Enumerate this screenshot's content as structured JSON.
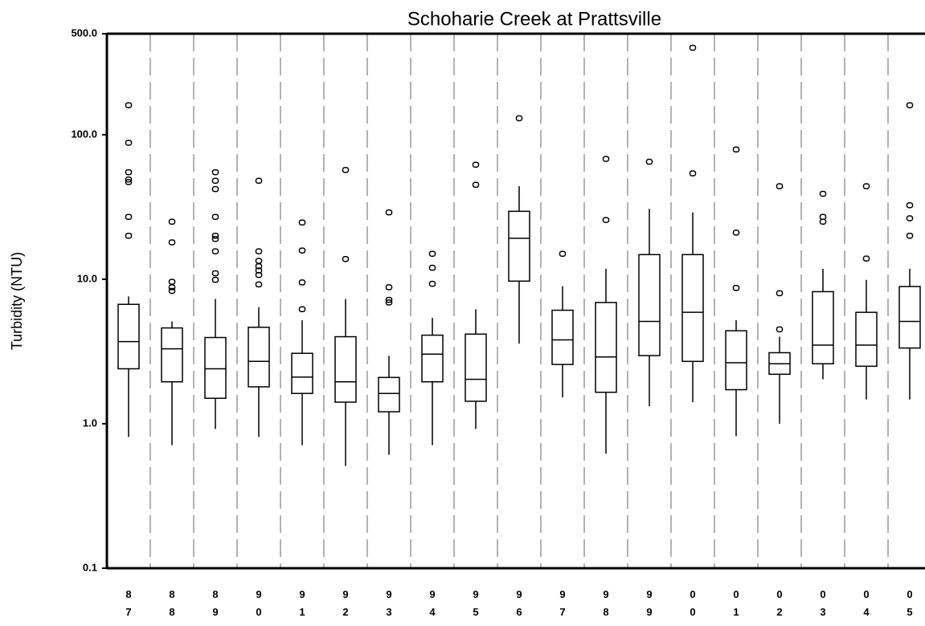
{
  "chart_data": {
    "type": "box",
    "title": "Schoharie Creek at Prattsville",
    "y_label": "Turbidity (NTU)",
    "categories": [
      "87",
      "88",
      "89",
      "90",
      "91",
      "92",
      "93",
      "94",
      "95",
      "96",
      "97",
      "98",
      "99",
      "00",
      "01",
      "02",
      "03",
      "04",
      "05"
    ],
    "boxes": [
      {
        "whisker_low": 0.81,
        "q1": 2.4,
        "median": 3.7,
        "q3": 6.7,
        "whisker_high": 7.6,
        "outliers": [
          160,
          88,
          55,
          49,
          47,
          27,
          20
        ]
      },
      {
        "whisker_low": 0.71,
        "q1": 1.95,
        "median": 3.3,
        "q3": 4.6,
        "whisker_high": 5.1,
        "outliers": [
          25,
          18,
          9.6,
          8.8,
          8.3
        ]
      },
      {
        "whisker_low": 0.92,
        "q1": 1.5,
        "median": 2.4,
        "q3": 3.95,
        "whisker_high": 7.3,
        "outliers": [
          55,
          48,
          42,
          27,
          20,
          19,
          15.6,
          11,
          9.9
        ]
      },
      {
        "whisker_low": 0.81,
        "q1": 1.8,
        "median": 2.7,
        "q3": 4.65,
        "whisker_high": 6.4,
        "outliers": [
          48,
          15.6,
          13.4,
          12.3,
          11.5,
          10.7,
          9.2
        ]
      },
      {
        "whisker_low": 0.71,
        "q1": 1.62,
        "median": 2.1,
        "q3": 3.07,
        "whisker_high": 5.2,
        "outliers": [
          24.7,
          15.8,
          9.5,
          6.2
        ]
      },
      {
        "whisker_low": 0.51,
        "q1": 1.41,
        "median": 1.95,
        "q3": 4.0,
        "whisker_high": 7.3,
        "outliers": [
          57,
          13.8
        ]
      },
      {
        "whisker_low": 0.61,
        "q1": 1.21,
        "median": 1.62,
        "q3": 2.09,
        "whisker_high": 2.95,
        "outliers": [
          29,
          8.8,
          7.2,
          6.9
        ]
      },
      {
        "whisker_low": 0.71,
        "q1": 1.95,
        "median": 3.03,
        "q3": 4.1,
        "whisker_high": 5.4,
        "outliers": [
          15,
          12,
          9.3
        ]
      },
      {
        "whisker_low": 0.92,
        "q1": 1.43,
        "median": 2.03,
        "q3": 4.17,
        "whisker_high": 6.2,
        "outliers": [
          62,
          45
        ]
      },
      {
        "whisker_low": 3.58,
        "q1": 9.7,
        "median": 19.2,
        "q3": 29.5,
        "whisker_high": 44,
        "outliers": [
          130
        ]
      },
      {
        "whisker_low": 1.52,
        "q1": 2.57,
        "median": 3.8,
        "q3": 6.1,
        "whisker_high": 8.95,
        "outliers": [
          15
        ]
      },
      {
        "whisker_low": 0.62,
        "q1": 1.65,
        "median": 2.9,
        "q3": 6.9,
        "whisker_high": 11.8,
        "outliers": [
          68,
          25.7
        ]
      },
      {
        "whisker_low": 1.32,
        "q1": 2.96,
        "median": 5.1,
        "q3": 14.8,
        "whisker_high": 30.7,
        "outliers": [
          65
        ]
      },
      {
        "whisker_low": 1.41,
        "q1": 2.7,
        "median": 5.9,
        "q3": 14.8,
        "whisker_high": 29,
        "outliers": [
          400,
          54
        ]
      },
      {
        "whisker_low": 0.82,
        "q1": 1.72,
        "median": 2.64,
        "q3": 4.4,
        "whisker_high": 5.2,
        "outliers": [
          79,
          21,
          8.7
        ]
      },
      {
        "whisker_low": 1.0,
        "q1": 2.2,
        "median": 2.6,
        "q3": 3.1,
        "whisker_high": 4.0,
        "outliers": [
          44,
          8.0,
          4.5
        ]
      },
      {
        "whisker_low": 2.03,
        "q1": 2.6,
        "median": 3.5,
        "q3": 8.2,
        "whisker_high": 11.8,
        "outliers": [
          39,
          27,
          25
        ]
      },
      {
        "whisker_low": 1.47,
        "q1": 2.5,
        "median": 3.5,
        "q3": 5.9,
        "whisker_high": 9.9,
        "outliers": [
          44,
          13.9
        ]
      },
      {
        "whisker_low": 1.47,
        "q1": 3.34,
        "median": 5.1,
        "q3": 8.9,
        "whisker_high": 11.8,
        "outliers": [
          160,
          32.5,
          26.4,
          20
        ]
      }
    ],
    "ylim": [
      0.1,
      500
    ],
    "yticks": [
      0.1,
      {
        "value": 1,
        "label": "1.0"
      },
      {
        "value": 10,
        "label": "10.0"
      },
      {
        "value": 100,
        "label": "100.0"
      },
      {
        "value": 500,
        "label": "500.0"
      }
    ],
    "log_scale": true,
    "color": "#000000"
  }
}
